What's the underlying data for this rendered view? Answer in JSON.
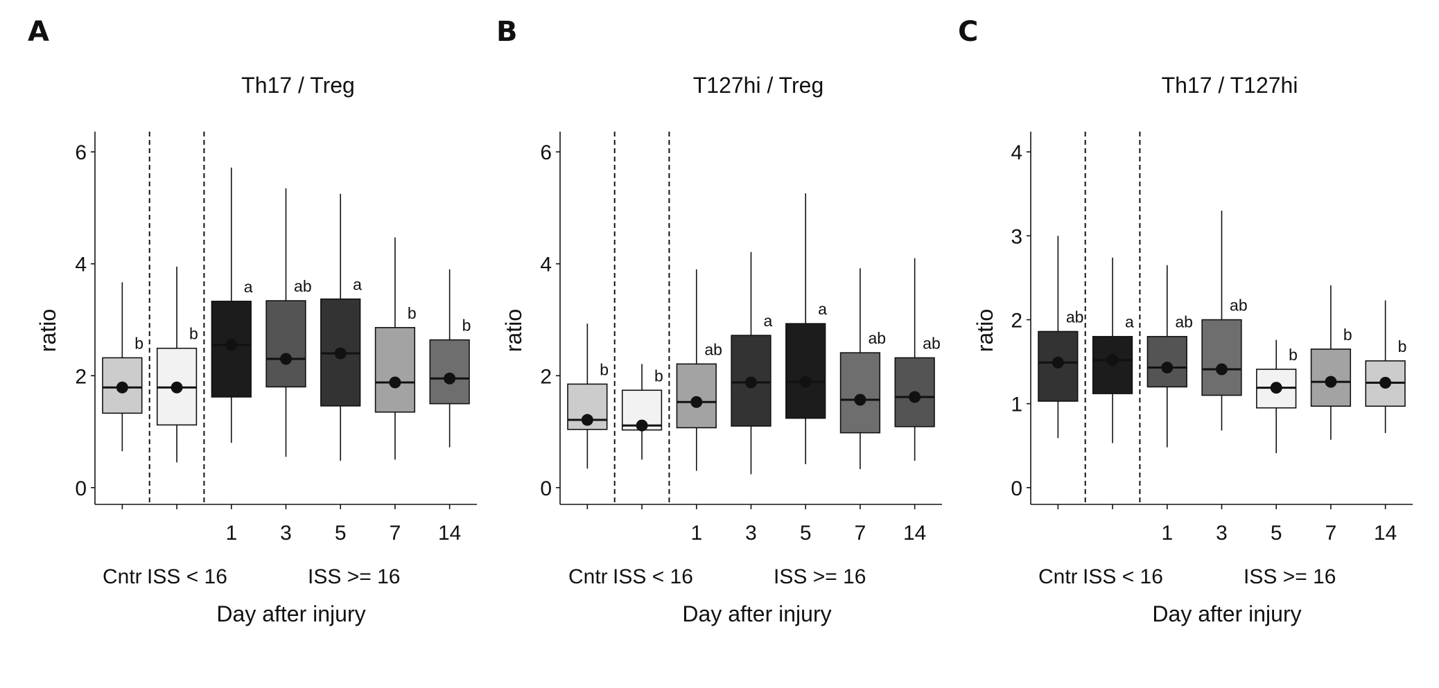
{
  "chart_data": [
    {
      "type": "box",
      "panel_letter": "A",
      "title": "Th17 / Treg",
      "ylabel": "ratio",
      "xlabel": "Day after injury",
      "ylim": [
        -0.3,
        6.3
      ],
      "yticks": [
        "0",
        "2",
        "4",
        "6"
      ],
      "group_labels": [
        "Cntr",
        "ISS < 16",
        "ISS >= 16"
      ],
      "boxes": [
        {
          "x_label": "",
          "min": 0.65,
          "q1": 1.33,
          "median": 1.79,
          "q3": 2.32,
          "max": 3.67,
          "mean": 1.79,
          "sig": "b",
          "fill": "#cccccc"
        },
        {
          "x_label": "",
          "min": 0.45,
          "q1": 1.12,
          "median": 1.79,
          "q3": 2.49,
          "max": 3.95,
          "mean": 1.79,
          "sig": "b",
          "fill": "#f2f2f2"
        },
        {
          "x_label": "1",
          "min": 0.8,
          "q1": 1.62,
          "median": 2.55,
          "q3": 3.33,
          "max": 5.72,
          "mean": 2.55,
          "sig": "a",
          "fill": "#1c1c1c"
        },
        {
          "x_label": "3",
          "min": 0.55,
          "q1": 1.8,
          "median": 2.3,
          "q3": 3.34,
          "max": 5.35,
          "mean": 2.3,
          "sig": "ab",
          "fill": "#545454"
        },
        {
          "x_label": "5",
          "min": 0.48,
          "q1": 1.46,
          "median": 2.4,
          "q3": 3.37,
          "max": 5.25,
          "mean": 2.4,
          "sig": "a",
          "fill": "#333333"
        },
        {
          "x_label": "7",
          "min": 0.5,
          "q1": 1.35,
          "median": 1.88,
          "q3": 2.86,
          "max": 4.47,
          "mean": 1.88,
          "sig": "b",
          "fill": "#a3a3a3"
        },
        {
          "x_label": "14",
          "min": 0.72,
          "q1": 1.5,
          "median": 1.95,
          "q3": 2.64,
          "max": 3.9,
          "mean": 1.95,
          "sig": "b",
          "fill": "#6e6e6e"
        }
      ]
    },
    {
      "type": "box",
      "panel_letter": "B",
      "title": "T127hi / Treg",
      "ylabel": "ratio",
      "xlabel": "Day after injury",
      "ylim": [
        -0.3,
        6.3
      ],
      "yticks": [
        "0",
        "2",
        "4",
        "6"
      ],
      "group_labels": [
        "Cntr",
        "ISS < 16",
        "ISS >= 16"
      ],
      "boxes": [
        {
          "x_label": "",
          "min": 0.34,
          "q1": 1.04,
          "median": 1.21,
          "q3": 1.85,
          "max": 2.93,
          "mean": 1.21,
          "sig": "b",
          "fill": "#cccccc"
        },
        {
          "x_label": "",
          "min": 0.5,
          "q1": 1.03,
          "median": 1.11,
          "q3": 1.74,
          "max": 2.21,
          "mean": 1.11,
          "sig": "b",
          "fill": "#f2f2f2"
        },
        {
          "x_label": "1",
          "min": 0.3,
          "q1": 1.07,
          "median": 1.53,
          "q3": 2.21,
          "max": 3.9,
          "mean": 1.53,
          "sig": "ab",
          "fill": "#a3a3a3"
        },
        {
          "x_label": "3",
          "min": 0.24,
          "q1": 1.1,
          "median": 1.88,
          "q3": 2.72,
          "max": 4.21,
          "mean": 1.88,
          "sig": "a",
          "fill": "#333333"
        },
        {
          "x_label": "5",
          "min": 0.42,
          "q1": 1.24,
          "median": 1.89,
          "q3": 2.93,
          "max": 5.26,
          "mean": 1.89,
          "sig": "a",
          "fill": "#1c1c1c"
        },
        {
          "x_label": "7",
          "min": 0.33,
          "q1": 0.98,
          "median": 1.57,
          "q3": 2.41,
          "max": 3.92,
          "mean": 1.57,
          "sig": "ab",
          "fill": "#6e6e6e"
        },
        {
          "x_label": "14",
          "min": 0.48,
          "q1": 1.09,
          "median": 1.62,
          "q3": 2.32,
          "max": 4.1,
          "mean": 1.62,
          "sig": "ab",
          "fill": "#545454"
        }
      ]
    },
    {
      "type": "box",
      "panel_letter": "C",
      "title": "Th17 / T127hi",
      "ylabel": "ratio",
      "xlabel": "Day after injury",
      "ylim": [
        -0.2,
        4.2
      ],
      "yticks": [
        "0",
        "1",
        "2",
        "3",
        "4"
      ],
      "group_labels": [
        "Cntr",
        "ISS < 16",
        "ISS >= 16"
      ],
      "boxes": [
        {
          "x_label": "",
          "min": 0.59,
          "q1": 1.03,
          "median": 1.49,
          "q3": 1.86,
          "max": 3.0,
          "mean": 1.49,
          "sig": "ab",
          "fill": "#333333"
        },
        {
          "x_label": "",
          "min": 0.53,
          "q1": 1.12,
          "median": 1.52,
          "q3": 1.8,
          "max": 2.74,
          "mean": 1.52,
          "sig": "a",
          "fill": "#1c1c1c"
        },
        {
          "x_label": "1",
          "min": 0.48,
          "q1": 1.2,
          "median": 1.43,
          "q3": 1.8,
          "max": 2.65,
          "mean": 1.43,
          "sig": "ab",
          "fill": "#545454"
        },
        {
          "x_label": "3",
          "min": 0.68,
          "q1": 1.1,
          "median": 1.41,
          "q3": 2.0,
          "max": 3.3,
          "mean": 1.41,
          "sig": "ab",
          "fill": "#6e6e6e"
        },
        {
          "x_label": "5",
          "min": 0.41,
          "q1": 0.95,
          "median": 1.19,
          "q3": 1.41,
          "max": 1.76,
          "mean": 1.19,
          "sig": "b",
          "fill": "#f2f2f2"
        },
        {
          "x_label": "7",
          "min": 0.57,
          "q1": 0.97,
          "median": 1.26,
          "q3": 1.65,
          "max": 2.41,
          "mean": 1.26,
          "sig": "b",
          "fill": "#a3a3a3"
        },
        {
          "x_label": "14",
          "min": 0.65,
          "q1": 0.97,
          "median": 1.25,
          "q3": 1.51,
          "max": 2.23,
          "mean": 1.25,
          "sig": "b",
          "fill": "#cccccc"
        }
      ]
    }
  ]
}
